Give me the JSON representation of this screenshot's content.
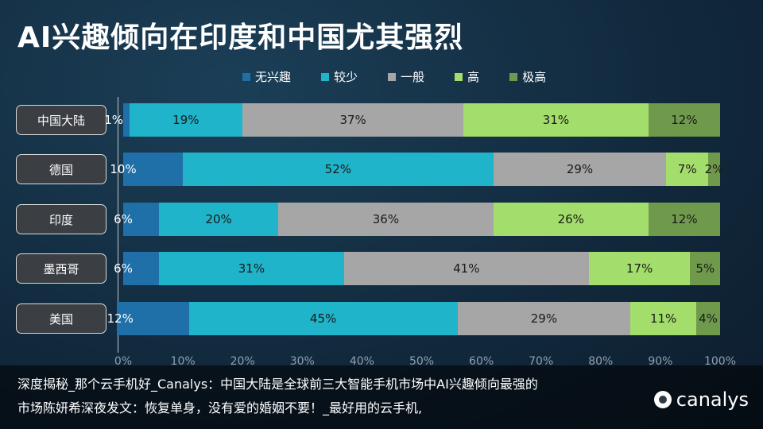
{
  "title": "AI兴趣倾向在印度和中国尤其强烈",
  "chart_data": {
    "type": "bar",
    "orientation": "horizontal",
    "stacked": true,
    "categories": [
      "中国大陆",
      "德国",
      "印度",
      "墨西哥",
      "美国"
    ],
    "series": [
      {
        "name": "无兴趣",
        "color": "#1f6fa8",
        "values": [
          1,
          10,
          6,
          6,
          12
        ]
      },
      {
        "name": "较少",
        "color": "#1fb4c9",
        "values": [
          19,
          52,
          20,
          31,
          45
        ]
      },
      {
        "name": "一般",
        "color": "#a6a6a6",
        "values": [
          37,
          29,
          36,
          41,
          29
        ]
      },
      {
        "name": "高",
        "color": "#a3dd6b",
        "values": [
          31,
          7,
          26,
          17,
          11
        ]
      },
      {
        "name": "极高",
        "color": "#6f9a4b",
        "values": [
          12,
          2,
          12,
          5,
          4
        ]
      }
    ],
    "xlim": [
      0,
      100
    ],
    "x_ticks": [
      "0%",
      "10%",
      "20%",
      "30%",
      "40%",
      "50%",
      "60%",
      "70%",
      "80%",
      "90%",
      "100%"
    ],
    "legend_position": "top"
  },
  "caption": {
    "line1": "深度揭秘_那个云手机好_Canalys：中国大陆是全球前三大智能手机市场中AI兴趣倾向最强的",
    "line2": "市场陈妍希深夜发文：恢复单身，没有爱的婚姻不要！_最好用的云手机,"
  },
  "logo_text": "canalys"
}
